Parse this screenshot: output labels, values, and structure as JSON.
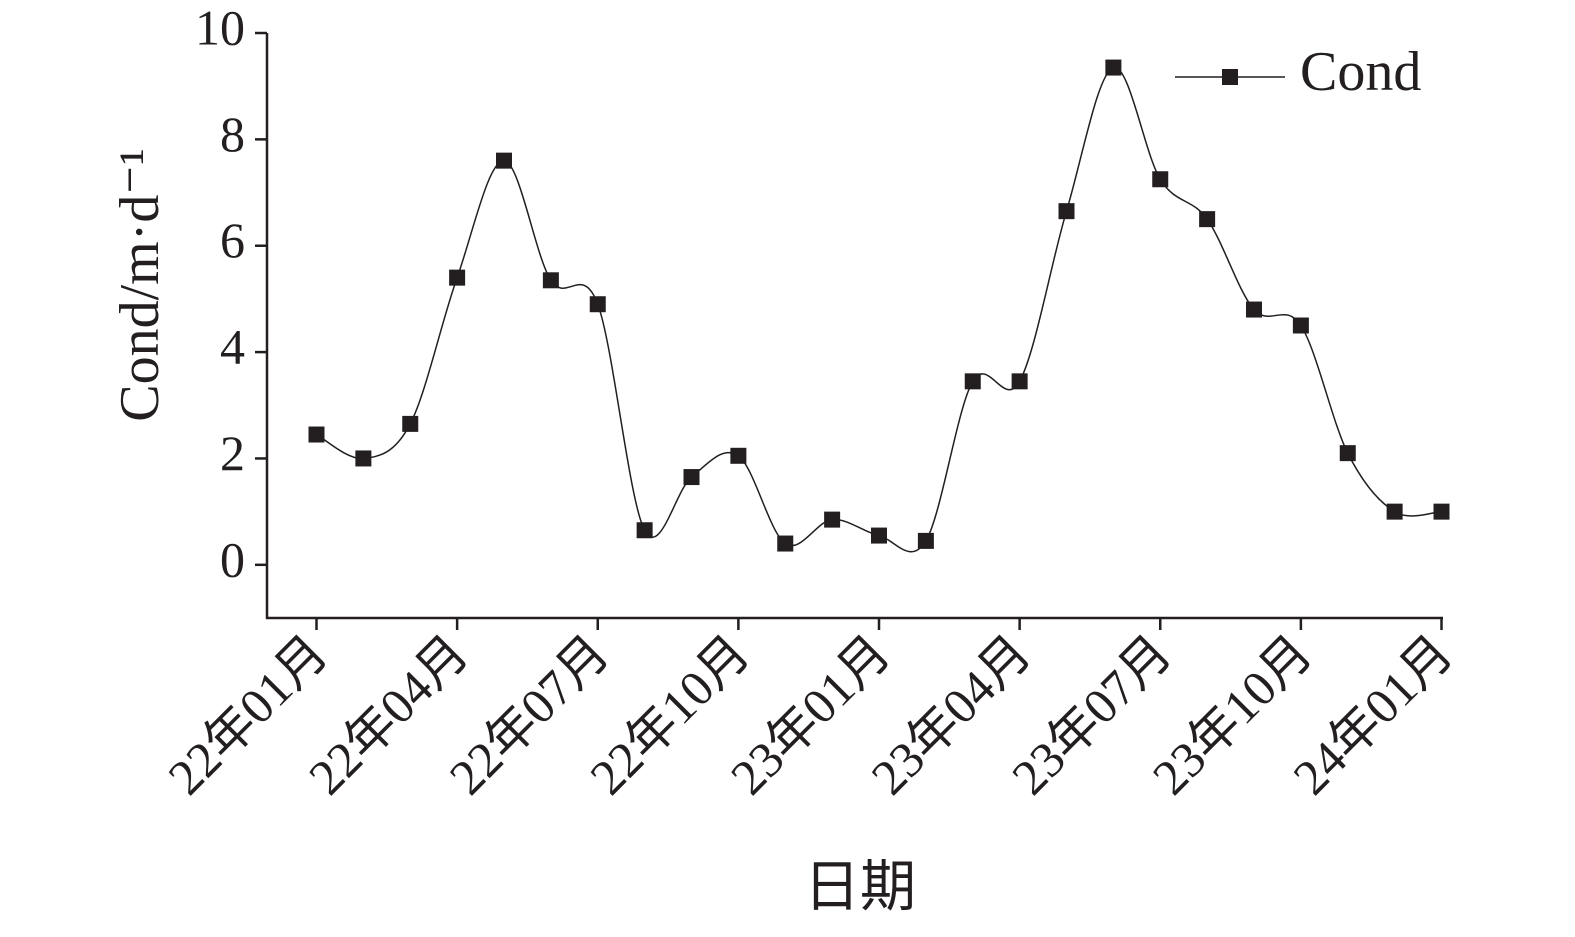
{
  "chart_data": {
    "type": "line",
    "xlabel": "日期",
    "ylabel": "Cond/m·d⁻¹",
    "categories": [
      "22年01月",
      null,
      null,
      "22年04月",
      null,
      null,
      "22年07月",
      null,
      null,
      "22年10月",
      null,
      null,
      "23年01月",
      null,
      null,
      "23年04月",
      null,
      null,
      "23年07月",
      null,
      null,
      "23年10月",
      null,
      null,
      "24年01月"
    ],
    "series": [
      {
        "name": "Cond",
        "color": "#231f20",
        "values": [
          2.45,
          2.0,
          2.65,
          5.4,
          7.6,
          5.35,
          4.9,
          0.65,
          1.65,
          2.05,
          0.4,
          0.85,
          0.55,
          0.45,
          3.45,
          3.45,
          6.65,
          9.35,
          7.25,
          6.5,
          4.8,
          4.5,
          2.1,
          1.0,
          1.0
        ]
      }
    ],
    "ylim": [
      -1,
      10
    ],
    "yticks": [
      0,
      2,
      4,
      6,
      8,
      10
    ],
    "legend": "upper right",
    "smooth": true
  }
}
